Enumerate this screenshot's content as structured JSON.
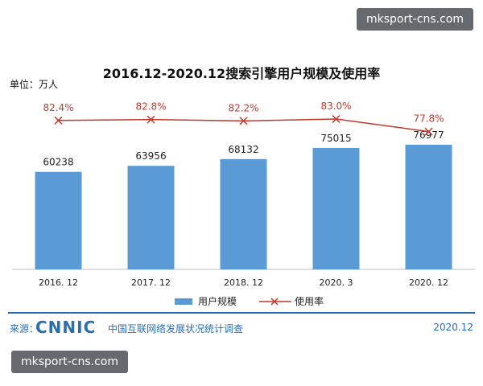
{
  "watermarks": {
    "top": "mksport-cns.com",
    "bottom": "mksport-cns.com"
  },
  "chart_data": {
    "type": "bar",
    "title": "2016.12-2020.12搜索引擎用户规模及使用率",
    "unit_label": "单位：万人",
    "categories": [
      "2016. 12",
      "2017. 12",
      "2018. 12",
      "2020. 3",
      "2020. 12"
    ],
    "series": [
      {
        "name": "用户规模",
        "kind": "bar",
        "values": [
          60238,
          63956,
          68132,
          75015,
          76977
        ],
        "labels": [
          "60238",
          "63956",
          "68132",
          "75015",
          "76977"
        ],
        "color": "#5b9bd5"
      },
      {
        "name": "使用率",
        "kind": "line",
        "values": [
          82.4,
          82.8,
          82.2,
          83.0,
          77.8
        ],
        "labels": [
          "82.4%",
          "82.8%",
          "82.2%",
          "83.0%",
          "77.8%"
        ],
        "color": "#c0392b"
      }
    ],
    "legend": "bottom",
    "grid": false
  },
  "footer": {
    "source_label": "来源：",
    "logo": "CNNIC",
    "org": "中国互联网络发展状况统计调查",
    "date": "2020.12"
  }
}
